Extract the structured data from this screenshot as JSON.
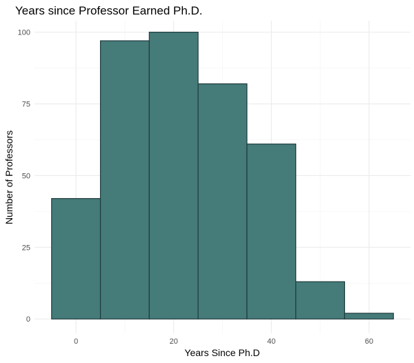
{
  "chart_data": {
    "type": "bar",
    "title": "Years since Professor Earned Ph.D.",
    "xlabel": "Years Since Ph.D",
    "ylabel": "Number of Professors",
    "xlim": [
      -8.5,
      68.5
    ],
    "ylim": [
      -5,
      104
    ],
    "x_ticks": [
      0,
      20,
      40,
      60
    ],
    "y_ticks": [
      0,
      25,
      50,
      75,
      100
    ],
    "bins": [
      {
        "start": -5,
        "end": 5,
        "count": 42
      },
      {
        "start": 5,
        "end": 15,
        "count": 97
      },
      {
        "start": 15,
        "end": 25,
        "count": 100
      },
      {
        "start": 25,
        "end": 35,
        "count": 82
      },
      {
        "start": 35,
        "end": 45,
        "count": 61
      },
      {
        "start": 45,
        "end": 55,
        "count": 13
      },
      {
        "start": 55,
        "end": 65,
        "count": 2
      }
    ],
    "bar_color": "#457b79",
    "bar_border_color": "#1f3b3d",
    "grid": true
  }
}
